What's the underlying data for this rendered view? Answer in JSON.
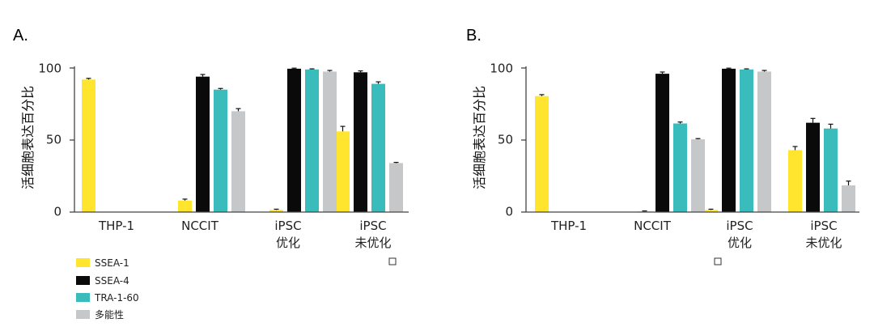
{
  "colors": {
    "SSEA-1": "#ffe52e",
    "SSEA-4": "#0a0a0a",
    "TRA-1-60": "#3bbcbc",
    "pluripotent": "#c6c7c9",
    "axis": "#444444"
  },
  "legend": [
    {
      "label": "SSEA-1",
      "color": "#ffe52e"
    },
    {
      "label": "SSEA-4",
      "color": "#0a0a0a"
    },
    {
      "label": "TRA-1-60",
      "color": "#3bbcbc"
    },
    {
      "label": "多能性",
      "color": "#c6c7c9"
    }
  ],
  "chart_data": [
    {
      "type": "bar",
      "panel_label": "A.",
      "ylabel": "活细胞表达百分比",
      "ylim": [
        0,
        100
      ],
      "yticks": [
        "0",
        "50",
        "100"
      ],
      "categories": [
        {
          "line1": "THP-1",
          "line2": ""
        },
        {
          "line1": "NCCIT",
          "line2": ""
        },
        {
          "line1": "iPSC",
          "line2": "优化"
        },
        {
          "line1": "iPSC",
          "line2": "未优化"
        }
      ],
      "series": [
        {
          "name": "SSEA-1",
          "values": [
            92,
            8,
            1.5,
            56
          ],
          "errors": [
            0.8,
            1.0,
            0.5,
            3.5
          ]
        },
        {
          "name": "SSEA-4",
          "values": [
            0,
            94,
            99.5,
            97
          ],
          "errors": [
            0,
            1.5,
            0.4,
            1.0
          ]
        },
        {
          "name": "TRA-1-60",
          "values": [
            0,
            85,
            99,
            89
          ],
          "errors": [
            0,
            0.8,
            0.4,
            1.4
          ]
        },
        {
          "name": "多能性",
          "values": [
            0,
            70,
            97.5,
            34
          ],
          "errors": [
            0,
            1.8,
            0.8,
            0.5
          ]
        }
      ]
    },
    {
      "type": "bar",
      "panel_label": "B.",
      "ylabel": "活细胞表达百分比",
      "ylim": [
        0,
        100
      ],
      "yticks": [
        "0",
        "50",
        "100"
      ],
      "categories": [
        {
          "line1": "THP-1",
          "line2": ""
        },
        {
          "line1": "NCCIT",
          "line2": ""
        },
        {
          "line1": "iPSC",
          "line2": "优化"
        },
        {
          "line1": "iPSC",
          "line2": "未优化"
        }
      ],
      "series": [
        {
          "name": "SSEA-1",
          "values": [
            80.5,
            0.5,
            1.5,
            43
          ],
          "errors": [
            1.0,
            0.3,
            0.5,
            2.5
          ]
        },
        {
          "name": "SSEA-4",
          "values": [
            0,
            96,
            99.5,
            62
          ],
          "errors": [
            0,
            1.2,
            0.4,
            3.0
          ]
        },
        {
          "name": "TRA-1-60",
          "values": [
            0,
            61.5,
            99,
            58
          ],
          "errors": [
            0,
            1.0,
            0.4,
            3.0
          ]
        },
        {
          "name": "多能性",
          "values": [
            0,
            50.5,
            97.5,
            18.5
          ],
          "errors": [
            0,
            0.5,
            0.8,
            3.0
          ]
        }
      ]
    }
  ]
}
